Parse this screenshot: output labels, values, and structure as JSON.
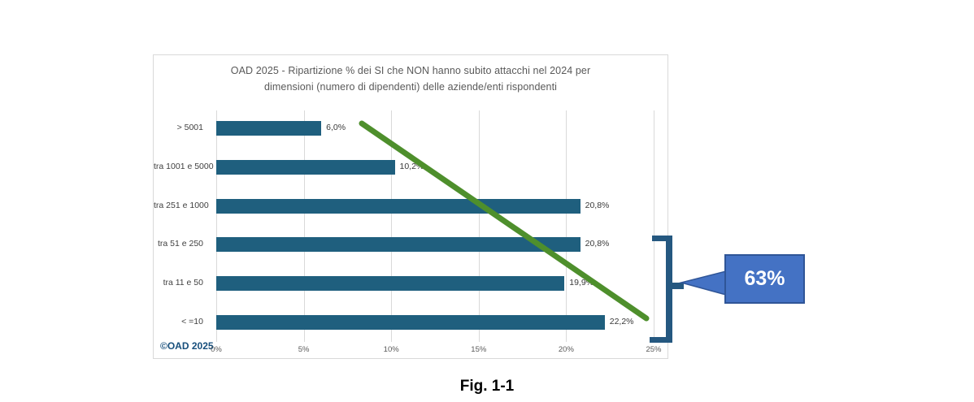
{
  "page": {
    "caption": "Fig. 1-1"
  },
  "chart_data": {
    "type": "bar",
    "orientation": "horizontal",
    "title": "OAD 2025 - Ripartizione % dei SI che NON hanno subito attacchi nel 2024  per dimensioni (numero di dipendenti) delle aziende/enti rispondenti",
    "categories": [
      "> 5001",
      "tra 1001 e 5000",
      "tra 251 e 1000",
      "tra 51 e 250",
      "tra 11 e 50",
      "< =10"
    ],
    "values": [
      6.0,
      10.2,
      20.8,
      20.8,
      19.9,
      22.2
    ],
    "value_labels": [
      "6,0%",
      "10,2%",
      "20,8%",
      "20,8%",
      "19,9%",
      "22,2%"
    ],
    "xlabel": "",
    "ylabel": "",
    "xlim": [
      0,
      25
    ],
    "x_ticks": [
      "0%",
      "5%",
      "10%",
      "15%",
      "20%",
      "25%"
    ],
    "grid": "vertical-only",
    "legend": "none",
    "bar_color": "#1f5f7e",
    "gridline_color": "#d9d9d9",
    "trend_line": {
      "description": "diagonal decreasing trend line drawn over the bars",
      "color": "#4e8f2c"
    }
  },
  "annotations": {
    "watermark": {
      "text": "©OAD 2025",
      "color": "#174f7c"
    },
    "callout": {
      "label": "63%",
      "fill": "#4472c4",
      "border": "#2f5597",
      "bracket_color": "#255880",
      "meaning": "bracket groups the bottom three size classes (tra 51 e 250, tra 11 e 50, < =10)"
    }
  }
}
